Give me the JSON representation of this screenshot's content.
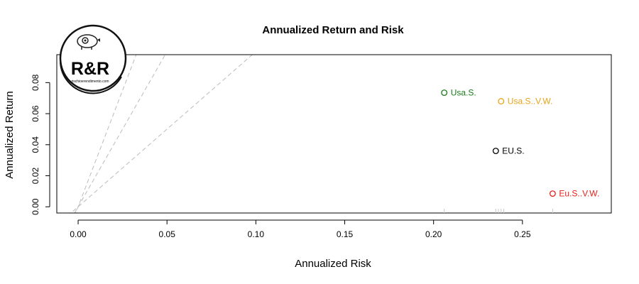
{
  "chart_data": {
    "type": "scatter",
    "title": "Annualized Return and Risk",
    "xlabel": "Annualized Risk",
    "ylabel": "Annualized Return",
    "xlim": [
      -0.012,
      0.3
    ],
    "ylim": [
      -0.004,
      0.098
    ],
    "x_ticks": [
      0.0,
      0.05,
      0.1,
      0.15,
      0.2,
      0.25
    ],
    "x_tick_labels": [
      "0.00",
      "0.05",
      "0.10",
      "0.15",
      "0.20",
      "0.25"
    ],
    "y_ticks": [
      0.0,
      0.02,
      0.04,
      0.06,
      0.08
    ],
    "y_tick_labels": [
      "0.00",
      "0.02",
      "0.04",
      "0.06",
      "0.08"
    ],
    "grid": false,
    "points": [
      {
        "name": "Usa.S.",
        "x": 0.206,
        "y": 0.0735,
        "color": "#1a7a1a"
      },
      {
        "name": "Usa.S..V.W.",
        "x": 0.238,
        "y": 0.068,
        "color": "#e8a317"
      },
      {
        "name": "EU.S.",
        "x": 0.235,
        "y": 0.036,
        "color": "#000000"
      },
      {
        "name": "Eu.S..V.W.",
        "x": 0.267,
        "y": 0.0085,
        "color": "#e8201a"
      }
    ],
    "reference_lines": [
      {
        "slope": 3.0,
        "style": "dashed",
        "color": "#bbbbbb"
      },
      {
        "slope": 2.0,
        "style": "dashed",
        "color": "#bbbbbb"
      },
      {
        "slope": 1.0,
        "style": "dashed",
        "color": "#bbbbbb"
      }
    ]
  },
  "logo": {
    "text": "R&R",
    "subtext": "rischioerendimento.com",
    "icon": "piggy-bank-gear-icon"
  }
}
